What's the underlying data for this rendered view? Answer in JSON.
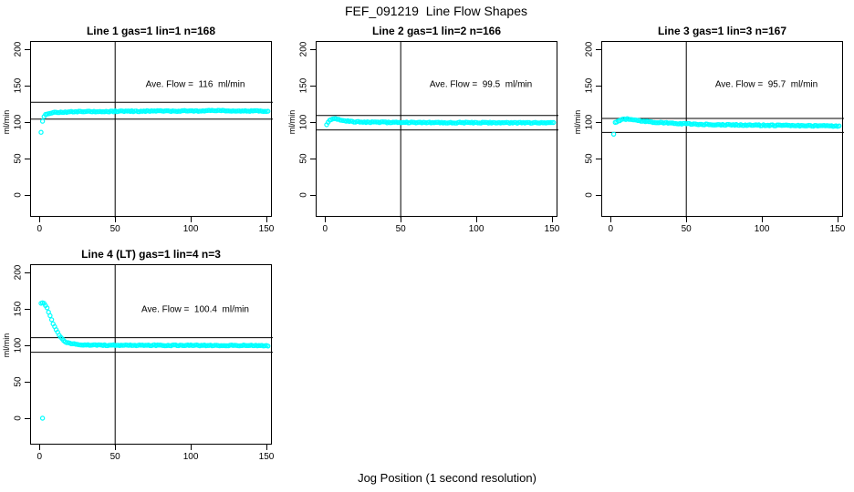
{
  "page": {
    "title": "FEF_091219  Line Flow Shapes",
    "xlabel": "Jog Position (1 second resolution)",
    "background_color": "#ffffff",
    "axis_color": "#000000"
  },
  "chart_data": [
    {
      "type": "scatter",
      "title": "Line 1 gas=1 lin=1 n=168",
      "annotation": "Ave. Flow =  116  ml/min",
      "ave_flow": 116,
      "n": 168,
      "ylabel": "ml/min",
      "xlim": [
        0,
        157
      ],
      "ylim": [
        0,
        210
      ],
      "x_ticks": [
        0,
        50,
        100,
        150
      ],
      "y_ticks": [
        0,
        50,
        100,
        150,
        200
      ],
      "vline_x": 50,
      "hlines": [
        127.6,
        104.4
      ],
      "marker_color": "#00FFFF",
      "keyframes": [
        [
          1,
          86
        ],
        [
          2,
          101
        ],
        [
          3,
          108
        ],
        [
          4,
          110.5
        ],
        [
          6,
          112.5
        ],
        [
          10,
          113.5
        ],
        [
          20,
          114.5
        ],
        [
          40,
          115
        ],
        [
          80,
          115.5
        ],
        [
          120,
          116
        ],
        [
          151,
          115.5
        ]
      ],
      "extra_points": []
    },
    {
      "type": "scatter",
      "title": "Line 2 gas=1 lin=2 n=166",
      "annotation": "Ave. Flow =  99.5  ml/min",
      "ave_flow": 99.5,
      "n": 166,
      "ylabel": "ml/min",
      "xlim": [
        0,
        157
      ],
      "ylim": [
        0,
        210
      ],
      "x_ticks": [
        0,
        50,
        100,
        150
      ],
      "y_ticks": [
        0,
        50,
        100,
        150,
        200
      ],
      "vline_x": 50,
      "hlines": [
        109.5,
        89.6
      ],
      "marker_color": "#00FFFF",
      "keyframes": [
        [
          1,
          97
        ],
        [
          2,
          100
        ],
        [
          3,
          103
        ],
        [
          5,
          104.8
        ],
        [
          8,
          104.5
        ],
        [
          12,
          102.5
        ],
        [
          18,
          101
        ],
        [
          30,
          100.2
        ],
        [
          60,
          99.8
        ],
        [
          100,
          99.6
        ],
        [
          151,
          99.3
        ]
      ],
      "extra_points": []
    },
    {
      "type": "scatter",
      "title": "Line 3 gas=1 lin=3 n=167",
      "annotation": "Ave. Flow =  95.7  ml/min",
      "ave_flow": 95.7,
      "n": 167,
      "ylabel": "ml/min",
      "xlim": [
        0,
        157
      ],
      "ylim": [
        0,
        210
      ],
      "x_ticks": [
        0,
        50,
        100,
        150
      ],
      "y_ticks": [
        0,
        50,
        100,
        150,
        200
      ],
      "vline_x": 50,
      "hlines": [
        105.3,
        86.1
      ],
      "marker_color": "#00FFFF",
      "keyframes": [
        [
          2,
          84
        ],
        [
          3,
          99.5
        ],
        [
          5,
          101.5
        ],
        [
          8,
          104
        ],
        [
          11,
          104.5
        ],
        [
          16,
          103
        ],
        [
          25,
          100.8
        ],
        [
          40,
          98.8
        ],
        [
          60,
          97.3
        ],
        [
          90,
          96.2
        ],
        [
          120,
          95.6
        ],
        [
          151,
          95
        ]
      ],
      "extra_points": []
    },
    {
      "type": "scatter",
      "title": "Line 4 (LT) gas=1 lin=4 n=3",
      "annotation": "Ave. Flow =  100.4  ml/min",
      "ave_flow": 100.4,
      "n": 3,
      "ylabel": "ml/min",
      "xlim": [
        0,
        157
      ],
      "ylim": [
        0,
        210
      ],
      "x_ticks": [
        0,
        50,
        100,
        150
      ],
      "y_ticks": [
        0,
        50,
        100,
        150,
        200
      ],
      "vline_x": 50,
      "hlines": [
        110.4,
        90.4
      ],
      "marker_color": "#00FFFF",
      "keyframes": [
        [
          1,
          158
        ],
        [
          3,
          157.5
        ],
        [
          4,
          155
        ],
        [
          5,
          151
        ],
        [
          6,
          146
        ],
        [
          7,
          140.5
        ],
        [
          8,
          135
        ],
        [
          9,
          130
        ],
        [
          10,
          125.5
        ],
        [
          11,
          121.5
        ],
        [
          12,
          117.5
        ],
        [
          13,
          114
        ],
        [
          14,
          111
        ],
        [
          15,
          108.5
        ],
        [
          16,
          106.5
        ],
        [
          17,
          105
        ],
        [
          18,
          104
        ],
        [
          20,
          102.7
        ],
        [
          23,
          101.7
        ],
        [
          26,
          101
        ],
        [
          30,
          100.6
        ],
        [
          40,
          100.2
        ],
        [
          60,
          100
        ],
        [
          100,
          100
        ],
        [
          151,
          99.6
        ]
      ],
      "extra_points": [
        [
          2,
          0
        ]
      ]
    }
  ]
}
